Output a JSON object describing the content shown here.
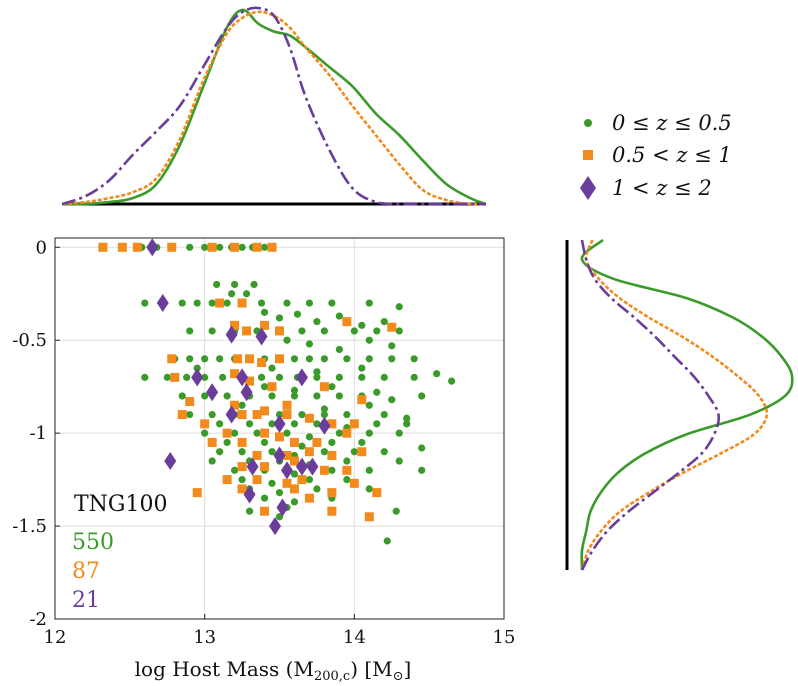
{
  "chart_data": {
    "type": "scatter",
    "xlabel": "log Host Mass (M",
    "xlabel_sub": "200,c",
    "xlabel_unit": ") [M",
    "xlabel_unit_sub": "⊙",
    "xlabel_end": "]",
    "ylabel": "",
    "xlim": [
      12,
      15
    ],
    "ylim": [
      -2,
      0.05
    ],
    "x_ticks": [
      12,
      13,
      14,
      15
    ],
    "x_tick_labels": [
      "12",
      "13",
      "14",
      "15"
    ],
    "y_ticks": [
      0,
      -0.5,
      -1,
      -1.5,
      -2
    ],
    "y_tick_labels": [
      "0",
      "-0.5",
      "-1",
      "-1.5",
      "-2"
    ],
    "grid": true,
    "annotations": {
      "simulation": "TNG100",
      "counts": [
        "550",
        "87",
        "21"
      ]
    },
    "legend_position": "top-right",
    "series": [
      {
        "name": "0 ≤ z ≤ 0.5",
        "color": "#3a9b2a",
        "marker": "circle",
        "count": 550,
        "points": [
          [
            12.58,
            0
          ],
          [
            12.68,
            0
          ],
          [
            12.78,
            0
          ],
          [
            12.9,
            0
          ],
          [
            13.0,
            0
          ],
          [
            13.1,
            0
          ],
          [
            13.18,
            0
          ],
          [
            13.25,
            0
          ],
          [
            13.32,
            0
          ],
          [
            13.4,
            0
          ],
          [
            13.08,
            -0.2
          ],
          [
            13.2,
            -0.2
          ],
          [
            13.33,
            -0.2
          ],
          [
            13.18,
            -0.25
          ],
          [
            13.28,
            -0.25
          ],
          [
            12.6,
            -0.3
          ],
          [
            12.72,
            -0.3
          ],
          [
            12.85,
            -0.3
          ],
          [
            12.95,
            -0.3
          ],
          [
            13.05,
            -0.3
          ],
          [
            13.15,
            -0.3
          ],
          [
            13.25,
            -0.3
          ],
          [
            13.38,
            -0.3
          ],
          [
            13.55,
            -0.3
          ],
          [
            13.7,
            -0.3
          ],
          [
            13.85,
            -0.3
          ],
          [
            14.1,
            -0.3
          ],
          [
            14.3,
            -0.32
          ],
          [
            13.4,
            -0.35
          ],
          [
            13.5,
            -0.38
          ],
          [
            13.62,
            -0.36
          ],
          [
            13.75,
            -0.4
          ],
          [
            13.9,
            -0.37
          ],
          [
            14.05,
            -0.42
          ],
          [
            14.2,
            -0.4
          ],
          [
            12.9,
            -0.45
          ],
          [
            13.05,
            -0.45
          ],
          [
            13.2,
            -0.45
          ],
          [
            13.35,
            -0.45
          ],
          [
            13.5,
            -0.45
          ],
          [
            13.65,
            -0.45
          ],
          [
            13.8,
            -0.45
          ],
          [
            14.0,
            -0.45
          ],
          [
            14.15,
            -0.45
          ],
          [
            14.3,
            -0.45
          ],
          [
            13.55,
            -0.5
          ],
          [
            13.7,
            -0.52
          ],
          [
            13.9,
            -0.55
          ],
          [
            14.1,
            -0.5
          ],
          [
            14.25,
            -0.53
          ],
          [
            12.8,
            -0.6
          ],
          [
            12.9,
            -0.6
          ],
          [
            13.0,
            -0.6
          ],
          [
            13.1,
            -0.6
          ],
          [
            13.2,
            -0.6
          ],
          [
            13.3,
            -0.6
          ],
          [
            13.4,
            -0.6
          ],
          [
            13.5,
            -0.6
          ],
          [
            13.6,
            -0.6
          ],
          [
            13.7,
            -0.6
          ],
          [
            13.8,
            -0.6
          ],
          [
            13.95,
            -0.6
          ],
          [
            14.1,
            -0.6
          ],
          [
            14.25,
            -0.6
          ],
          [
            14.4,
            -0.6
          ],
          [
            12.95,
            -0.65
          ],
          [
            13.45,
            -0.65
          ],
          [
            13.75,
            -0.67
          ],
          [
            14.05,
            -0.65
          ],
          [
            12.6,
            -0.7
          ],
          [
            12.75,
            -0.7
          ],
          [
            12.88,
            -0.7
          ],
          [
            13.0,
            -0.7
          ],
          [
            13.12,
            -0.7
          ],
          [
            13.25,
            -0.7
          ],
          [
            13.38,
            -0.7
          ],
          [
            13.5,
            -0.7
          ],
          [
            13.62,
            -0.7
          ],
          [
            13.75,
            -0.7
          ],
          [
            13.9,
            -0.7
          ],
          [
            14.05,
            -0.7
          ],
          [
            14.2,
            -0.7
          ],
          [
            14.4,
            -0.7
          ],
          [
            14.55,
            -0.68
          ],
          [
            14.65,
            -0.72
          ],
          [
            13.4,
            -0.75
          ],
          [
            13.6,
            -0.77
          ],
          [
            13.85,
            -0.75
          ],
          [
            14.15,
            -0.78
          ],
          [
            12.85,
            -0.8
          ],
          [
            13.0,
            -0.8
          ],
          [
            13.15,
            -0.8
          ],
          [
            13.3,
            -0.8
          ],
          [
            13.45,
            -0.8
          ],
          [
            13.6,
            -0.8
          ],
          [
            13.75,
            -0.8
          ],
          [
            13.9,
            -0.8
          ],
          [
            14.05,
            -0.8
          ],
          [
            14.25,
            -0.82
          ],
          [
            14.45,
            -0.8
          ],
          [
            13.25,
            -0.85
          ],
          [
            13.55,
            -0.85
          ],
          [
            13.8,
            -0.87
          ],
          [
            14.1,
            -0.85
          ],
          [
            12.9,
            -0.9
          ],
          [
            13.05,
            -0.9
          ],
          [
            13.2,
            -0.9
          ],
          [
            13.35,
            -0.9
          ],
          [
            13.5,
            -0.9
          ],
          [
            13.65,
            -0.9
          ],
          [
            13.8,
            -0.9
          ],
          [
            13.95,
            -0.9
          ],
          [
            14.2,
            -0.9
          ],
          [
            14.35,
            -0.92
          ],
          [
            13.1,
            -0.95
          ],
          [
            13.3,
            -0.95
          ],
          [
            13.45,
            -0.95
          ],
          [
            13.6,
            -0.95
          ],
          [
            13.75,
            -0.95
          ],
          [
            13.95,
            -0.97
          ],
          [
            14.15,
            -0.95
          ],
          [
            14.35,
            -0.95
          ],
          [
            13.0,
            -1.0
          ],
          [
            13.2,
            -1.0
          ],
          [
            13.35,
            -1.0
          ],
          [
            13.55,
            -1.0
          ],
          [
            13.7,
            -1.02
          ],
          [
            13.9,
            -1.0
          ],
          [
            14.1,
            -1.0
          ],
          [
            14.3,
            -1.0
          ],
          [
            13.15,
            -1.05
          ],
          [
            13.4,
            -1.05
          ],
          [
            13.65,
            -1.07
          ],
          [
            13.85,
            -1.05
          ],
          [
            14.05,
            -1.05
          ],
          [
            13.1,
            -1.1
          ],
          [
            13.25,
            -1.1
          ],
          [
            13.45,
            -1.1
          ],
          [
            13.6,
            -1.12
          ],
          [
            13.8,
            -1.1
          ],
          [
            14.0,
            -1.1
          ],
          [
            14.2,
            -1.1
          ],
          [
            14.45,
            -1.08
          ],
          [
            13.05,
            -1.15
          ],
          [
            13.3,
            -1.15
          ],
          [
            13.5,
            -1.15
          ],
          [
            13.7,
            -1.17
          ],
          [
            13.95,
            -1.15
          ],
          [
            14.3,
            -1.15
          ],
          [
            13.2,
            -1.2
          ],
          [
            13.4,
            -1.2
          ],
          [
            13.6,
            -1.22
          ],
          [
            13.85,
            -1.2
          ],
          [
            14.1,
            -1.2
          ],
          [
            14.45,
            -1.2
          ],
          [
            13.25,
            -1.25
          ],
          [
            13.45,
            -1.27
          ],
          [
            13.7,
            -1.25
          ],
          [
            13.95,
            -1.25
          ],
          [
            13.3,
            -1.3
          ],
          [
            13.5,
            -1.32
          ],
          [
            13.75,
            -1.3
          ],
          [
            14.1,
            -1.3
          ],
          [
            13.4,
            -1.35
          ],
          [
            13.6,
            -1.37
          ],
          [
            13.85,
            -1.35
          ],
          [
            13.55,
            -1.4
          ],
          [
            13.3,
            -1.42
          ],
          [
            14.28,
            -1.42
          ],
          [
            13.5,
            -1.45
          ],
          [
            14.22,
            -1.58
          ]
        ]
      },
      {
        "name": "0.5 < z ≤ 1",
        "color": "#f28a1c",
        "marker": "square",
        "count": 87,
        "points": [
          [
            12.32,
            0
          ],
          [
            12.45,
            0
          ],
          [
            12.55,
            0
          ],
          [
            12.78,
            0
          ],
          [
            13.05,
            0
          ],
          [
            13.2,
            0
          ],
          [
            13.35,
            0
          ],
          [
            13.45,
            0
          ],
          [
            13.1,
            -0.3
          ],
          [
            13.25,
            -0.3
          ],
          [
            13.4,
            -0.42
          ],
          [
            13.2,
            -0.42
          ],
          [
            13.5,
            -0.45
          ],
          [
            13.95,
            -0.4
          ],
          [
            14.25,
            -0.43
          ],
          [
            13.28,
            -0.45
          ],
          [
            12.78,
            -0.6
          ],
          [
            13.22,
            -0.6
          ],
          [
            13.3,
            -0.6
          ],
          [
            13.38,
            -0.62
          ],
          [
            13.5,
            -0.6
          ],
          [
            12.8,
            -0.7
          ],
          [
            13.2,
            -0.68
          ],
          [
            13.3,
            -0.72
          ],
          [
            13.45,
            -0.75
          ],
          [
            13.8,
            -0.75
          ],
          [
            14.05,
            -0.82
          ],
          [
            12.9,
            -0.83
          ],
          [
            13.2,
            -0.85
          ],
          [
            13.4,
            -0.88
          ],
          [
            13.55,
            -0.85
          ],
          [
            12.85,
            -0.9
          ],
          [
            13.25,
            -0.9
          ],
          [
            13.35,
            -0.9
          ],
          [
            13.55,
            -0.9
          ],
          [
            13.7,
            -0.92
          ],
          [
            13.85,
            -0.95
          ],
          [
            14.0,
            -0.95
          ],
          [
            13.0,
            -0.95
          ],
          [
            13.15,
            -1.0
          ],
          [
            13.4,
            -1.0
          ],
          [
            13.5,
            -1.02
          ],
          [
            13.6,
            -1.05
          ],
          [
            13.75,
            -1.05
          ],
          [
            13.95,
            -1.0
          ],
          [
            13.05,
            -1.05
          ],
          [
            13.25,
            -1.05
          ],
          [
            13.35,
            -1.12
          ],
          [
            13.55,
            -1.12
          ],
          [
            13.7,
            -1.1
          ],
          [
            13.85,
            -1.12
          ],
          [
            14.05,
            -1.1
          ],
          [
            13.25,
            -1.18
          ],
          [
            13.4,
            -1.18
          ],
          [
            13.6,
            -1.15
          ],
          [
            13.8,
            -1.2
          ],
          [
            13.95,
            -1.2
          ],
          [
            13.15,
            -1.25
          ],
          [
            13.35,
            -1.25
          ],
          [
            13.55,
            -1.27
          ],
          [
            13.65,
            -1.25
          ],
          [
            14.0,
            -1.27
          ],
          [
            13.25,
            -1.3
          ],
          [
            13.6,
            -1.3
          ],
          [
            13.85,
            -1.32
          ],
          [
            14.15,
            -1.32
          ],
          [
            12.95,
            -1.32
          ],
          [
            13.7,
            -1.35
          ],
          [
            13.4,
            -1.42
          ],
          [
            13.85,
            -1.42
          ],
          [
            14.1,
            -1.45
          ]
        ]
      },
      {
        "name": "1 < z ≤ 2",
        "color": "#6a3d9a",
        "marker": "diamond",
        "count": 21,
        "points": [
          [
            12.65,
            0
          ],
          [
            12.72,
            -0.3
          ],
          [
            13.18,
            -0.47
          ],
          [
            13.38,
            -0.48
          ],
          [
            12.95,
            -0.7
          ],
          [
            13.25,
            -0.7
          ],
          [
            13.05,
            -0.78
          ],
          [
            13.28,
            -0.78
          ],
          [
            13.18,
            -0.9
          ],
          [
            13.5,
            -0.95
          ],
          [
            13.8,
            -0.96
          ],
          [
            13.65,
            -0.7
          ],
          [
            12.77,
            -1.15
          ],
          [
            13.32,
            -1.18
          ],
          [
            13.5,
            -1.12
          ],
          [
            13.65,
            -1.18
          ],
          [
            13.72,
            -1.18
          ],
          [
            13.55,
            -1.2
          ],
          [
            13.3,
            -1.33
          ],
          [
            13.52,
            -1.4
          ],
          [
            13.47,
            -1.5
          ]
        ]
      }
    ],
    "marginal_top": {
      "type": "line",
      "description_series": [
        "0 ≤ z ≤ 0.5",
        "0.5 < z ≤ 1",
        "1 < z ≤ 2"
      ],
      "x": [
        12.15,
        12.3,
        12.45,
        12.6,
        12.75,
        12.9,
        13.05,
        13.2,
        13.3,
        13.4,
        13.5,
        13.6,
        13.7,
        13.85,
        14.0,
        14.15,
        14.3,
        14.45,
        14.6,
        14.75,
        14.85
      ],
      "green": [
        0.0,
        0.0,
        0.01,
        0.03,
        0.1,
        0.3,
        0.6,
        0.9,
        0.99,
        0.92,
        0.88,
        0.86,
        0.8,
        0.7,
        0.6,
        0.46,
        0.35,
        0.22,
        0.1,
        0.03,
        0.0
      ],
      "orange": [
        0.0,
        0.01,
        0.03,
        0.06,
        0.13,
        0.33,
        0.63,
        0.87,
        0.95,
        0.98,
        0.96,
        0.9,
        0.8,
        0.66,
        0.5,
        0.35,
        0.2,
        0.07,
        0.02,
        0.0,
        0.0
      ],
      "purple": [
        0.0,
        0.04,
        0.12,
        0.25,
        0.37,
        0.5,
        0.7,
        0.9,
        0.98,
        1.0,
        0.96,
        0.8,
        0.55,
        0.28,
        0.08,
        0.01,
        0.0,
        0.0,
        0.0,
        0.0,
        0.0
      ]
    },
    "marginal_right": {
      "type": "line",
      "y": [
        0.0,
        -0.1,
        -0.2,
        -0.3,
        -0.4,
        -0.5,
        -0.6,
        -0.7,
        -0.8,
        -0.9,
        -1.0,
        -1.1,
        -1.2,
        -1.3,
        -1.4,
        -1.5,
        -1.6,
        -1.7
      ],
      "green": [
        0.1,
        0.0,
        0.15,
        0.5,
        0.72,
        0.86,
        0.95,
        1.0,
        0.97,
        0.8,
        0.5,
        0.3,
        0.17,
        0.09,
        0.04,
        0.02,
        0.0,
        0.0
      ],
      "orange": [
        0.05,
        0.02,
        0.08,
        0.18,
        0.32,
        0.48,
        0.62,
        0.74,
        0.84,
        0.88,
        0.82,
        0.66,
        0.48,
        0.32,
        0.18,
        0.09,
        0.03,
        0.0
      ],
      "purple": [
        0.0,
        0.02,
        0.06,
        0.14,
        0.25,
        0.35,
        0.44,
        0.53,
        0.6,
        0.65,
        0.63,
        0.57,
        0.46,
        0.34,
        0.22,
        0.12,
        0.05,
        0.0
      ]
    }
  }
}
